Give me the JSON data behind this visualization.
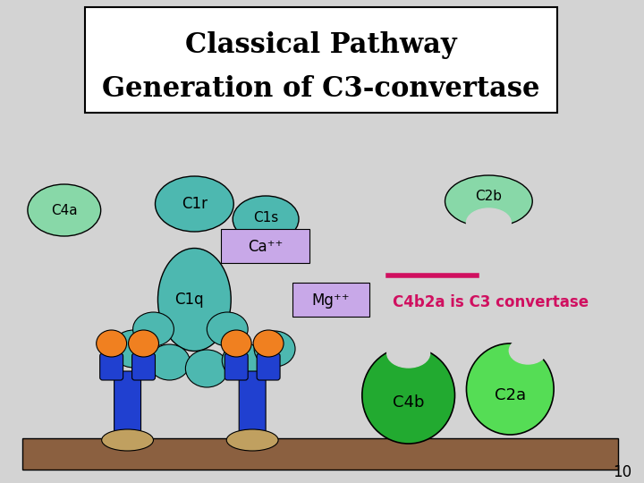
{
  "title_line1": "Classical Pathway",
  "title_line2": "Generation of C3-convertase",
  "bg_color": "#d3d3d3",
  "title_box_color": "#ffffff",
  "slide_number": "10",
  "colors": {
    "teal": "#4db8b0",
    "light_green": "#88d8a8",
    "mid_green": "#22aa30",
    "bright_green": "#55dd55",
    "orange": "#f08020",
    "blue": "#2040d0",
    "purple_light": "#c8a8e8",
    "brown": "#8B6040",
    "tan": "#c0a060",
    "pink_red": "#d01060"
  }
}
